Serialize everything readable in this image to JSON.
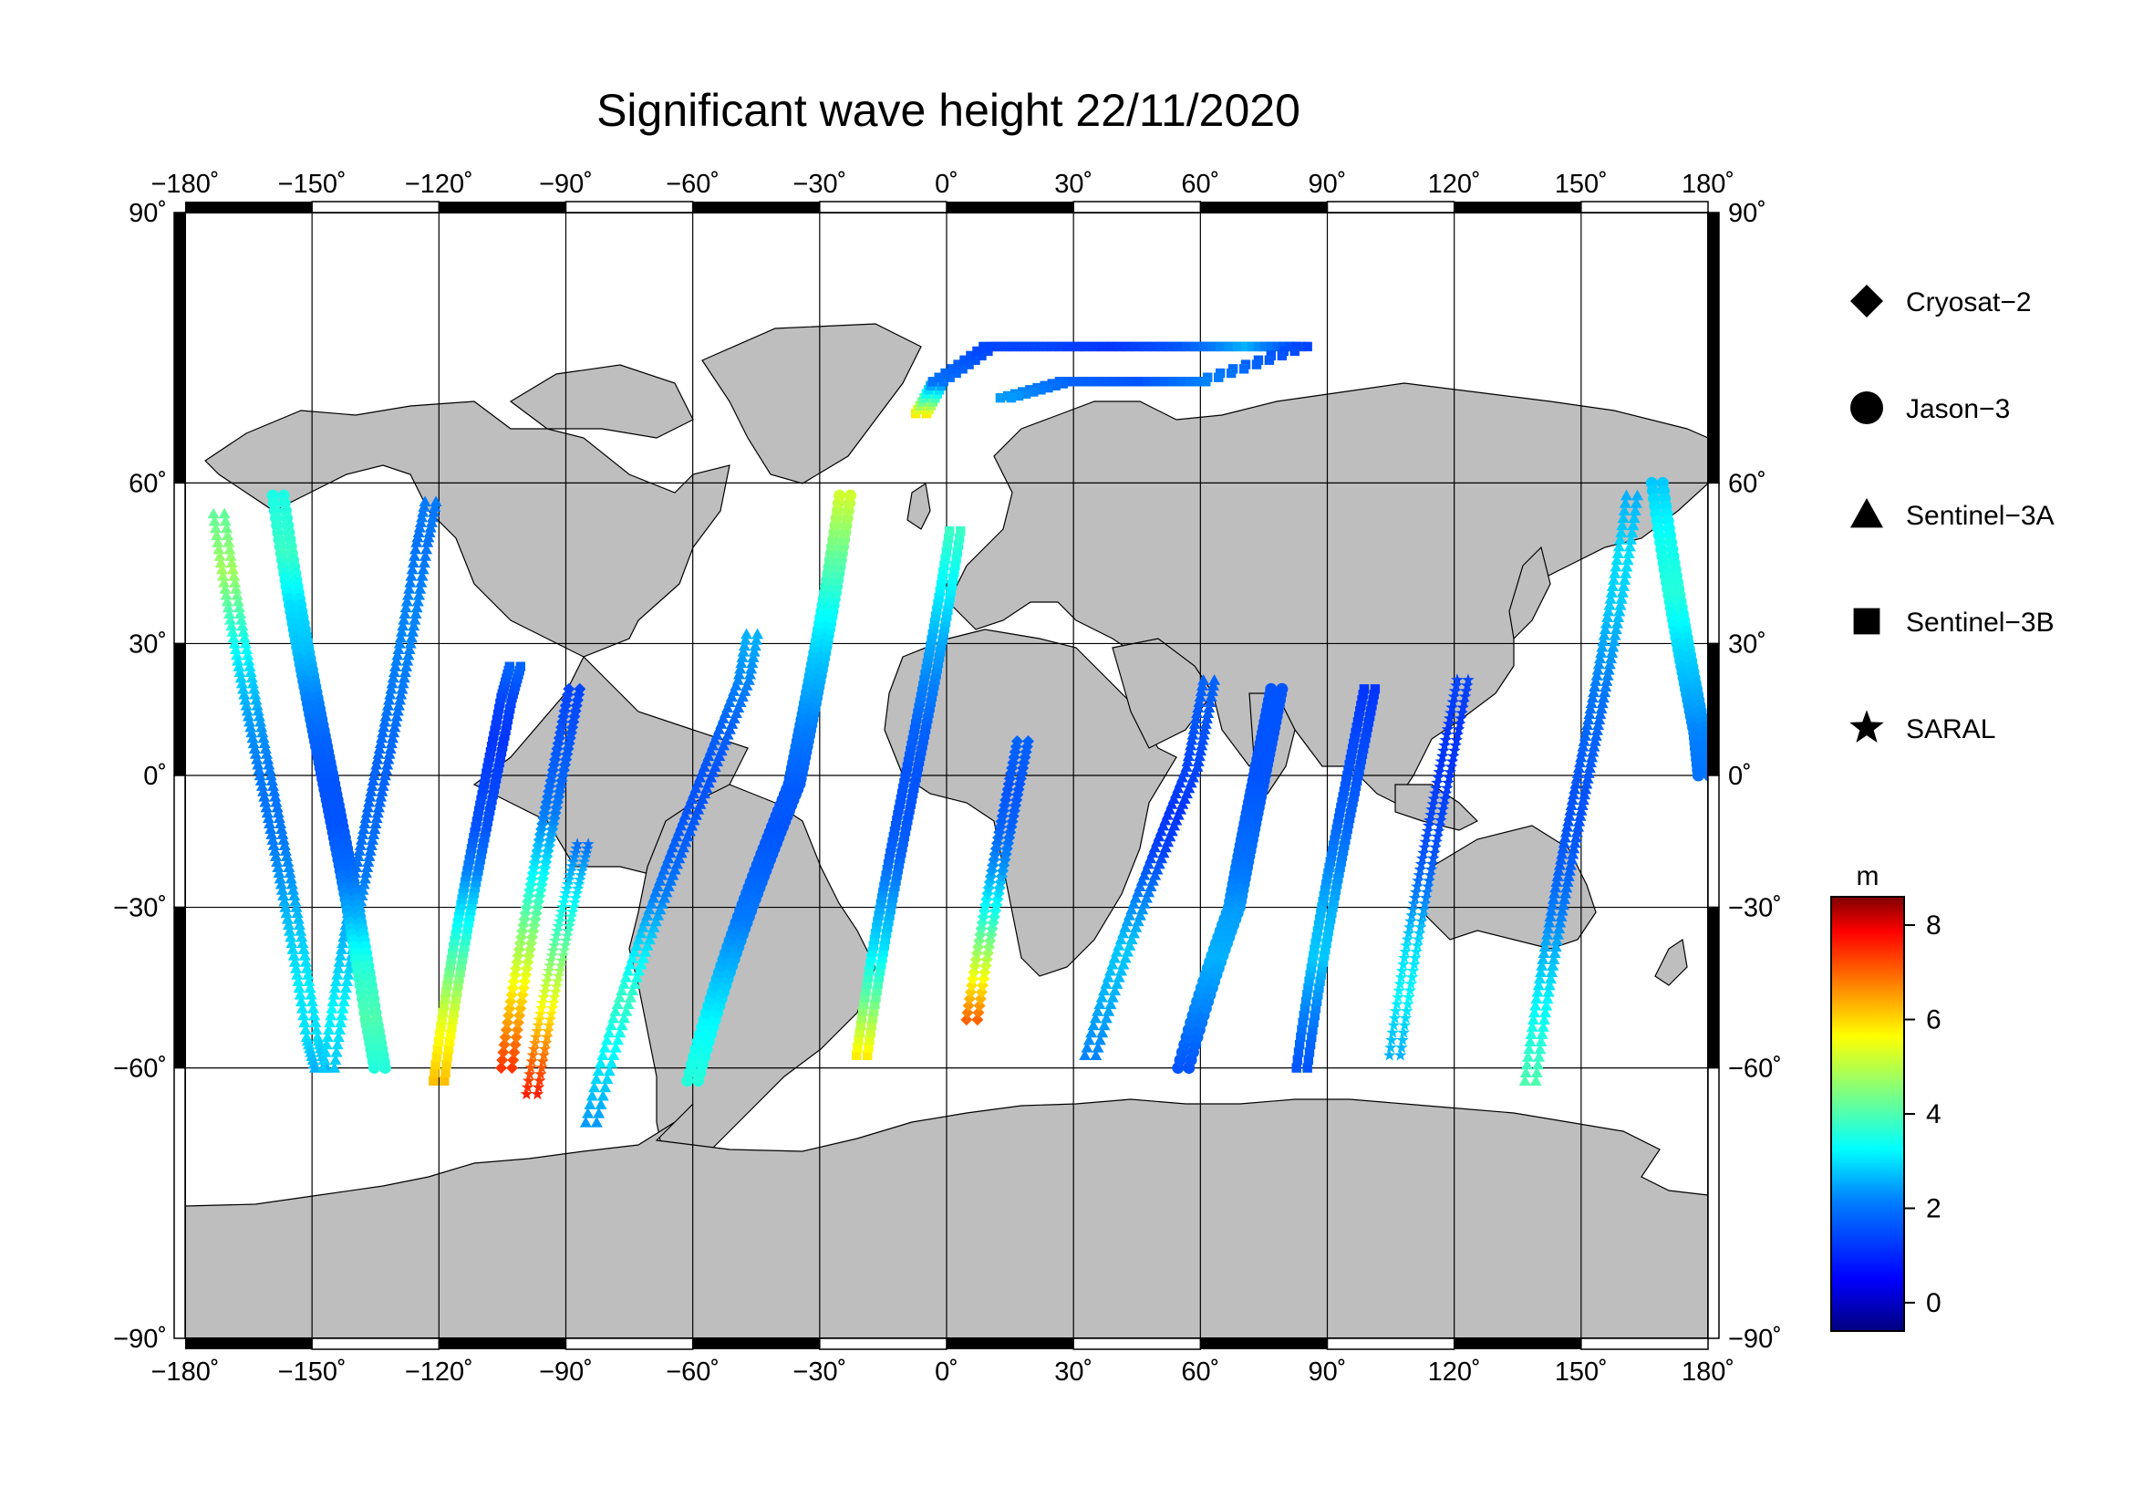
{
  "title": "Significant wave height 22/11/2020",
  "axes": {
    "lon_ticks": [
      {
        "v": -180,
        "label": "−180"
      },
      {
        "v": -150,
        "label": "−150"
      },
      {
        "v": -120,
        "label": "−120"
      },
      {
        "v": -90,
        "label": "−90"
      },
      {
        "v": -60,
        "label": "−60"
      },
      {
        "v": -30,
        "label": "−30"
      },
      {
        "v": 0,
        "label": "0"
      },
      {
        "v": 30,
        "label": "30"
      },
      {
        "v": 60,
        "label": "60"
      },
      {
        "v": 90,
        "label": "90"
      },
      {
        "v": 120,
        "label": "120"
      },
      {
        "v": 150,
        "label": "150"
      },
      {
        "v": 180,
        "label": "180"
      }
    ],
    "lat_ticks": [
      {
        "v": 90,
        "label": "90"
      },
      {
        "v": 60,
        "label": "60"
      },
      {
        "v": 30,
        "label": "30"
      },
      {
        "v": 0,
        "label": "0"
      },
      {
        "v": -30,
        "label": "−30"
      },
      {
        "v": -60,
        "label": "−60"
      },
      {
        "v": -90,
        "label": "−90"
      }
    ],
    "degree_symbol": "˚",
    "lon_range": [
      -180,
      180
    ],
    "lat_range": [
      -90,
      90
    ],
    "projection": "Miller cylindrical",
    "grid": true
  },
  "legend": {
    "items": [
      {
        "label": "Cryosat−2",
        "symbol": "diamond"
      },
      {
        "label": "Jason−3",
        "symbol": "circle"
      },
      {
        "label": "Sentinel−3A",
        "symbol": "triangle"
      },
      {
        "label": "Sentinel−3B",
        "symbol": "square"
      },
      {
        "label": "SARAL",
        "symbol": "star"
      }
    ]
  },
  "colorbar": {
    "unit": "m",
    "ticks": [
      8,
      6,
      4,
      2,
      0
    ],
    "range": [
      -0.6,
      8.6
    ],
    "colormap": [
      "#00007f",
      "#0000ff",
      "#007fff",
      "#00ffff",
      "#7fff7f",
      "#ffff00",
      "#ff7f00",
      "#ff0000",
      "#7f0000"
    ]
  },
  "colors": {
    "land": "#bebebe",
    "ocean": "#ffffff",
    "coast": "#000000"
  },
  "chart_data": {
    "type": "scatter",
    "title": "Significant wave height 22/11/2020",
    "value_unit": "m",
    "tracks": [
      {
        "satellite": "Sentinel-3A",
        "symbol": "triangle",
        "points": [
          [
            -172,
            55,
            4.2
          ],
          [
            -170,
            45,
            4.8
          ],
          [
            -168,
            35,
            3.8
          ],
          [
            -166,
            25,
            3.0
          ],
          [
            -164,
            15,
            2.5
          ],
          [
            -162,
            5,
            2.2
          ],
          [
            -160,
            -5,
            2.0
          ],
          [
            -158,
            -15,
            2.1
          ],
          [
            -156,
            -25,
            2.4
          ],
          [
            -154,
            -35,
            2.8
          ],
          [
            -152,
            -45,
            3.1
          ],
          [
            -150,
            -55,
            3.0
          ],
          [
            -148,
            -60,
            2.6
          ]
        ]
      },
      {
        "satellite": "Sentinel-3A",
        "symbol": "triangle",
        "points": [
          [
            -146,
            -60,
            2.8
          ],
          [
            -144,
            -50,
            3.2
          ],
          [
            -142,
            -40,
            2.8
          ],
          [
            -140,
            -30,
            2.4
          ],
          [
            -138,
            -20,
            2.0
          ],
          [
            -136,
            -10,
            1.9
          ],
          [
            -134,
            0,
            1.8
          ],
          [
            -132,
            10,
            1.9
          ],
          [
            -130,
            20,
            2.1
          ],
          [
            -128,
            30,
            2.2
          ],
          [
            -126,
            40,
            2.2
          ],
          [
            -124,
            50,
            2.0
          ],
          [
            -122,
            57,
            2.1
          ]
        ]
      },
      {
        "satellite": "Jason-3",
        "symbol": "circle",
        "points": [
          [
            -158,
            58,
            3.5
          ],
          [
            -156,
            48,
            3.8
          ],
          [
            -154,
            38,
            3.0
          ],
          [
            -152,
            28,
            2.7
          ],
          [
            -150,
            18,
            2.2
          ],
          [
            -148,
            8,
            1.8
          ],
          [
            -146,
            -2,
            1.6
          ],
          [
            -144,
            -12,
            1.6
          ],
          [
            -142,
            -22,
            1.9
          ],
          [
            -140,
            -32,
            2.6
          ],
          [
            -138,
            -42,
            3.6
          ],
          [
            -136,
            -52,
            4.0
          ],
          [
            -134,
            -60,
            3.6
          ]
        ]
      },
      {
        "satellite": "Sentinel-3B",
        "symbol": "square",
        "points": [
          [
            -120,
            -62,
            6.2
          ],
          [
            -118,
            -52,
            5.4
          ],
          [
            -116,
            -42,
            4.2
          ],
          [
            -114,
            -32,
            3.2
          ],
          [
            -112,
            -22,
            2.2
          ],
          [
            -110,
            -12,
            1.6
          ],
          [
            -108,
            -2,
            1.4
          ],
          [
            -106,
            8,
            1.2
          ],
          [
            -104,
            18,
            1.4
          ],
          [
            -102,
            25,
            1.8
          ]
        ]
      },
      {
        "satellite": "Cryosat-2",
        "symbol": "diamond",
        "points": [
          [
            -104,
            -60,
            7.4
          ],
          [
            -102,
            -50,
            6.2
          ],
          [
            -100,
            -40,
            5.0
          ],
          [
            -98,
            -30,
            4.0
          ],
          [
            -96,
            -20,
            3.0
          ],
          [
            -94,
            -10,
            2.2
          ],
          [
            -92,
            0,
            1.8
          ],
          [
            -90,
            10,
            1.6
          ],
          [
            -88,
            20,
            1.4
          ]
        ]
      },
      {
        "satellite": "SARAL",
        "symbol": "star",
        "points": [
          [
            -98,
            -64,
            7.6
          ],
          [
            -96,
            -56,
            6.6
          ],
          [
            -94,
            -48,
            5.4
          ],
          [
            -92,
            -40,
            4.4
          ],
          [
            -90,
            -32,
            3.6
          ],
          [
            -88,
            -24,
            2.8
          ],
          [
            -86,
            -16,
            2.0
          ]
        ]
      },
      {
        "satellite": "Sentinel-3A",
        "symbol": "triangle",
        "points": [
          [
            -84,
            -68,
            2.4
          ],
          [
            -80,
            -58,
            3.2
          ],
          [
            -76,
            -48,
            3.8
          ],
          [
            -72,
            -38,
            3.0
          ],
          [
            -68,
            -28,
            2.2
          ],
          [
            -64,
            -18,
            1.8
          ],
          [
            -60,
            -8,
            1.6
          ],
          [
            -56,
            2,
            1.6
          ],
          [
            -52,
            12,
            1.8
          ],
          [
            -48,
            22,
            2.2
          ],
          [
            -46,
            32,
            2.6
          ]
        ]
      },
      {
        "satellite": "Jason-3",
        "symbol": "circle",
        "points": [
          [
            -60,
            -62,
            3.6
          ],
          [
            -56,
            -52,
            3.2
          ],
          [
            -52,
            -42,
            2.6
          ],
          [
            -48,
            -32,
            2.1
          ],
          [
            -44,
            -22,
            1.8
          ],
          [
            -40,
            -12,
            1.6
          ],
          [
            -36,
            -2,
            1.7
          ],
          [
            -34,
            8,
            2.0
          ],
          [
            -32,
            18,
            2.4
          ],
          [
            -30,
            28,
            2.8
          ],
          [
            -28,
            38,
            3.4
          ],
          [
            -26,
            48,
            4.2
          ],
          [
            -24,
            58,
            5.2
          ]
        ]
      },
      {
        "satellite": "Sentinel-3B",
        "symbol": "square",
        "points": [
          [
            -20,
            -58,
            5.8
          ],
          [
            -18,
            -48,
            4.2
          ],
          [
            -16,
            -38,
            3.0
          ],
          [
            -14,
            -28,
            2.4
          ],
          [
            -12,
            -18,
            1.8
          ],
          [
            -10,
            -8,
            1.6
          ],
          [
            -8,
            2,
            1.6
          ],
          [
            -6,
            12,
            1.8
          ],
          [
            -4,
            22,
            2.2
          ],
          [
            -2,
            32,
            2.6
          ],
          [
            0,
            42,
            3.2
          ],
          [
            2,
            52,
            3.8
          ]
        ]
      },
      {
        "satellite": "Cryosat-2",
        "symbol": "diamond",
        "points": [
          [
            6,
            -52,
            7.0
          ],
          [
            8,
            -42,
            5.2
          ],
          [
            10,
            -32,
            3.6
          ],
          [
            12,
            -22,
            2.4
          ],
          [
            14,
            -12,
            1.8
          ],
          [
            16,
            -2,
            1.6
          ],
          [
            18,
            8,
            1.8
          ]
        ]
      },
      {
        "satellite": "Sentinel-3A",
        "symbol": "triangle",
        "points": [
          [
            34,
            -58,
            2.2
          ],
          [
            38,
            -48,
            2.6
          ],
          [
            42,
            -38,
            2.8
          ],
          [
            46,
            -28,
            2.2
          ],
          [
            50,
            -18,
            1.4
          ],
          [
            54,
            -8,
            1.2
          ],
          [
            58,
            2,
            1.4
          ],
          [
            60,
            12,
            1.6
          ],
          [
            62,
            22,
            1.8
          ]
        ]
      },
      {
        "satellite": "Jason-3",
        "symbol": "circle",
        "points": [
          [
            56,
            -60,
            1.6
          ],
          [
            60,
            -50,
            2.2
          ],
          [
            64,
            -40,
            2.6
          ],
          [
            68,
            -30,
            2.4
          ],
          [
            70,
            -20,
            2.0
          ],
          [
            72,
            -10,
            1.8
          ],
          [
            74,
            0,
            1.6
          ],
          [
            76,
            10,
            1.6
          ],
          [
            78,
            20,
            1.6
          ]
        ]
      },
      {
        "satellite": "Sentinel-3B",
        "symbol": "square",
        "points": [
          [
            84,
            -60,
            1.6
          ],
          [
            86,
            -50,
            2.2
          ],
          [
            88,
            -40,
            2.8
          ],
          [
            90,
            -30,
            2.6
          ],
          [
            92,
            -20,
            2.2
          ],
          [
            94,
            -10,
            1.8
          ],
          [
            96,
            0,
            1.6
          ],
          [
            98,
            10,
            1.4
          ],
          [
            100,
            20,
            1.2
          ]
        ]
      },
      {
        "satellite": "SARAL",
        "symbol": "star",
        "points": [
          [
            106,
            -58,
            2.6
          ],
          [
            108,
            -48,
            3.2
          ],
          [
            110,
            -38,
            3.0
          ],
          [
            112,
            -28,
            2.2
          ],
          [
            114,
            -18,
            1.6
          ],
          [
            116,
            -8,
            1.4
          ],
          [
            118,
            2,
            1.2
          ],
          [
            120,
            12,
            1.2
          ],
          [
            122,
            22,
            1.4
          ]
        ]
      },
      {
        "satellite": "Sentinel-3A",
        "symbol": "triangle",
        "points": [
          [
            138,
            -62,
            4.0
          ],
          [
            140,
            -52,
            3.4
          ],
          [
            142,
            -42,
            2.8
          ],
          [
            144,
            -32,
            2.2
          ],
          [
            146,
            -22,
            1.8
          ],
          [
            148,
            -12,
            1.6
          ],
          [
            150,
            -2,
            1.6
          ],
          [
            152,
            8,
            1.8
          ],
          [
            154,
            18,
            2.0
          ],
          [
            156,
            28,
            2.4
          ],
          [
            158,
            38,
            2.8
          ],
          [
            160,
            48,
            3.0
          ],
          [
            162,
            58,
            2.6
          ]
        ]
      },
      {
        "satellite": "Jason-3",
        "symbol": "circle",
        "points": [
          [
            168,
            60,
            2.8
          ],
          [
            170,
            50,
            3.4
          ],
          [
            172,
            40,
            3.6
          ],
          [
            174,
            30,
            3.0
          ],
          [
            176,
            20,
            2.6
          ],
          [
            178,
            10,
            2.2
          ],
          [
            179,
            0,
            2.0
          ]
        ]
      },
      {
        "satellite": "Sentinel-3B",
        "symbol": "square",
        "points": [
          [
            -6,
            70,
            5.8
          ],
          [
            -2,
            74,
            2.0
          ],
          [
            10,
            78,
            1.4
          ],
          [
            24,
            78,
            1.4
          ],
          [
            40,
            78,
            1.2
          ],
          [
            56,
            78,
            1.6
          ],
          [
            72,
            78,
            2.6
          ],
          [
            84,
            78,
            1.4
          ],
          [
            60,
            74,
            2.2
          ],
          [
            44,
            74,
            1.6
          ],
          [
            28,
            74,
            1.8
          ],
          [
            14,
            72,
            2.4
          ]
        ]
      }
    ]
  }
}
